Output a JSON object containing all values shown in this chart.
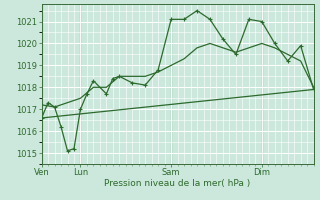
{
  "bg_color": "#cce8dc",
  "grid_color": "#ffffff",
  "line_color": "#2d6a2d",
  "marker_color": "#2d6a2d",
  "xlabel": "Pression niveau de la mer( hPa )",
  "ylim": [
    1014.5,
    1021.8
  ],
  "yticks": [
    1015,
    1016,
    1017,
    1018,
    1019,
    1020,
    1021
  ],
  "x_ven": 0,
  "x_lun": 3,
  "x_sam": 10,
  "x_dim": 17,
  "x_end": 21,
  "series1_x": [
    0,
    0.5,
    1,
    1.5,
    2,
    2.5,
    3,
    3.5,
    4,
    5,
    5.5,
    6,
    7,
    8,
    9,
    10,
    11,
    12,
    13,
    14,
    15,
    16,
    17,
    18,
    19,
    20,
    21
  ],
  "series1_y": [
    1016.6,
    1017.3,
    1017.1,
    1016.2,
    1015.1,
    1015.2,
    1017.0,
    1017.7,
    1018.3,
    1017.7,
    1018.4,
    1018.5,
    1018.2,
    1018.1,
    1018.8,
    1021.1,
    1021.1,
    1021.5,
    1021.1,
    1020.2,
    1019.5,
    1021.1,
    1021.0,
    1020.0,
    1019.2,
    1019.9,
    1017.9
  ],
  "series2_x": [
    0,
    1,
    2,
    3,
    4,
    5,
    6,
    7,
    8,
    9,
    10,
    11,
    12,
    13,
    14,
    15,
    16,
    17,
    18,
    19,
    20,
    21
  ],
  "series2_y": [
    1017.2,
    1017.1,
    1017.3,
    1017.5,
    1018.0,
    1018.0,
    1018.5,
    1018.5,
    1018.5,
    1018.7,
    1019.0,
    1019.3,
    1019.8,
    1020.0,
    1019.8,
    1019.6,
    1019.8,
    1020.0,
    1019.8,
    1019.5,
    1019.2,
    1018.0
  ],
  "series3_x": [
    0,
    21
  ],
  "series3_y": [
    1016.6,
    1017.9
  ],
  "xmin": 0,
  "xmax": 21
}
